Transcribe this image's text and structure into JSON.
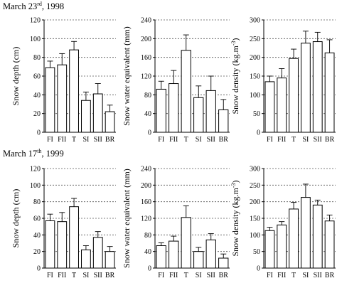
{
  "rows": [
    {
      "title_main": "March 23",
      "title_sup": "rd",
      "title_tail": ", 1998"
    },
    {
      "title_main": "March 17",
      "title_sup": "th",
      "title_tail": ", 1999"
    }
  ],
  "chart_data": [
    {
      "type": "bar",
      "row": 0,
      "col": 0,
      "categories": [
        "FI",
        "FII",
        "T",
        "SI",
        "SII",
        "BR"
      ],
      "values": [
        69,
        72,
        88,
        34,
        41,
        22
      ],
      "errors": [
        7,
        12,
        9,
        9,
        11,
        7
      ],
      "ylabel": "Snow depth (cm)",
      "ylim": [
        0,
        120
      ],
      "yticks": [
        0,
        20,
        40,
        60,
        80,
        100,
        120
      ],
      "grid": "dashed-horizontal"
    },
    {
      "type": "bar",
      "row": 0,
      "col": 1,
      "categories": [
        "FI",
        "FII",
        "T",
        "SI",
        "SII",
        "BR"
      ],
      "values": [
        92,
        104,
        175,
        74,
        89,
        48
      ],
      "errors": [
        17,
        28,
        33,
        25,
        31,
        22
      ],
      "ylabel": "Snow water equivalent (mm)",
      "ylim": [
        0,
        240
      ],
      "yticks": [
        0,
        40,
        80,
        120,
        160,
        200,
        240
      ],
      "grid": "dashed-horizontal"
    },
    {
      "type": "bar",
      "row": 0,
      "col": 2,
      "categories": [
        "FI",
        "FII",
        "T",
        "SI",
        "SII",
        "BR"
      ],
      "values": [
        135,
        145,
        197,
        238,
        242,
        212
      ],
      "errors": [
        15,
        25,
        25,
        32,
        25,
        35
      ],
      "ylabel_main": "Snow density (kg.m",
      "ylabel_sup": "-3",
      "ylabel_tail": ")",
      "ylim": [
        0,
        300
      ],
      "yticks": [
        0,
        50,
        100,
        150,
        200,
        250,
        300
      ],
      "grid": "dashed-horizontal"
    },
    {
      "type": "bar",
      "row": 1,
      "col": 0,
      "categories": [
        "FI",
        "FII",
        "T",
        "SI",
        "SII",
        "BR"
      ],
      "values": [
        57,
        56,
        74,
        22,
        37,
        20
      ],
      "errors": [
        8,
        11,
        10,
        5,
        7,
        6
      ],
      "ylabel": "Snow depth (cm)",
      "ylim": [
        0,
        120
      ],
      "yticks": [
        0,
        20,
        40,
        60,
        80,
        100,
        120
      ],
      "grid": "dashed-horizontal"
    },
    {
      "type": "bar",
      "row": 1,
      "col": 1,
      "categories": [
        "FI",
        "FII",
        "T",
        "SI",
        "SII",
        "BR"
      ],
      "values": [
        54,
        65,
        122,
        40,
        68,
        24
      ],
      "errors": [
        7,
        12,
        28,
        10,
        15,
        10
      ],
      "ylabel": "Snow water equivalent (mm)",
      "ylim": [
        0,
        240
      ],
      "yticks": [
        0,
        40,
        80,
        120,
        160,
        200,
        240
      ],
      "grid": "dashed-horizontal"
    },
    {
      "type": "bar",
      "row": 1,
      "col": 2,
      "categories": [
        "FI",
        "FII",
        "T",
        "SI",
        "SII",
        "BR"
      ],
      "values": [
        113,
        130,
        178,
        213,
        190,
        142
      ],
      "errors": [
        10,
        10,
        20,
        40,
        15,
        18
      ],
      "ylabel_main": "Snow density (kg.m",
      "ylabel_sup": "-3",
      "ylabel_tail": ")",
      "ylim": [
        0,
        300
      ],
      "yticks": [
        0,
        50,
        100,
        150,
        200,
        250,
        300
      ],
      "grid": "dashed-horizontal"
    }
  ]
}
